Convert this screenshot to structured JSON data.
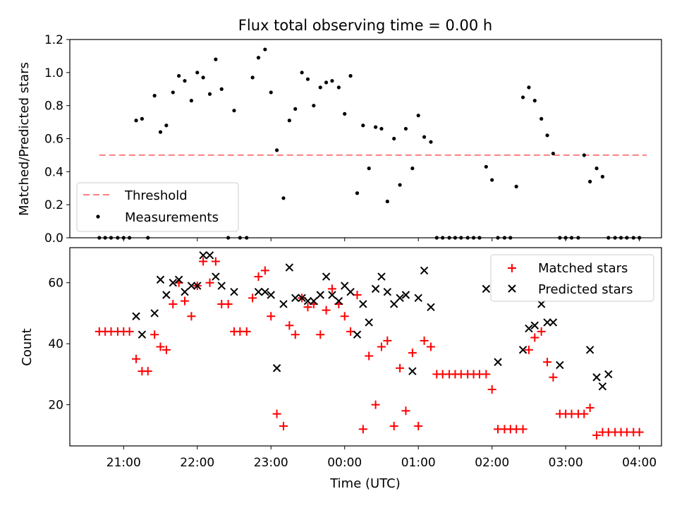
{
  "chart_data": [
    {
      "type": "scatter",
      "title": "Flux total observing time = 0.00 h",
      "xlabel": "",
      "ylabel": "Matched/Predicted stars",
      "ylim": [
        0,
        1.2
      ],
      "yticks": [
        "0.0",
        "0.2",
        "0.4",
        "0.6",
        "0.8",
        "1.0",
        "1.2"
      ],
      "xlim": [
        20.27,
        28.3
      ],
      "grid": false,
      "legend_position": "lower-left",
      "threshold": {
        "name": "Threshold",
        "value": 0.5,
        "x": [
          20.67,
          28.1
        ],
        "color": "#ff7f7f"
      },
      "series": [
        {
          "name": "Measurements",
          "color": "#000000",
          "x": [
            20.67,
            20.75,
            20.83,
            20.92,
            21.0,
            21.08,
            21.17,
            21.25,
            21.33,
            21.42,
            21.5,
            21.58,
            21.67,
            21.75,
            21.83,
            21.92,
            22.0,
            22.08,
            22.17,
            22.25,
            22.33,
            22.42,
            22.5,
            22.58,
            22.67,
            22.75,
            22.83,
            22.92,
            23.0,
            23.08,
            23.17,
            23.25,
            23.33,
            23.42,
            23.5,
            23.58,
            23.67,
            23.75,
            23.83,
            23.92,
            24.0,
            24.08,
            24.17,
            24.25,
            24.33,
            24.42,
            24.5,
            24.58,
            24.67,
            24.75,
            24.83,
            24.92,
            25.0,
            25.08,
            25.17,
            25.25,
            25.33,
            25.42,
            25.5,
            25.58,
            25.67,
            25.75,
            25.83,
            25.92,
            26.0,
            26.08,
            26.17,
            26.25,
            26.33,
            26.42,
            26.5,
            26.58,
            26.67,
            26.75,
            26.83,
            26.92,
            27.0,
            27.08,
            27.17,
            27.25,
            27.33,
            27.42,
            27.5,
            27.58,
            27.67,
            27.75,
            27.83,
            27.92,
            28.0
          ],
          "y": [
            0,
            0,
            0,
            0,
            0,
            0,
            0.71,
            0.72,
            0,
            0.86,
            0.64,
            0.68,
            0.88,
            0.98,
            0.95,
            0.83,
            1.0,
            0.97,
            0.87,
            1.08,
            0.9,
            0,
            0.77,
            0,
            0,
            0.97,
            1.09,
            1.14,
            0.88,
            0.53,
            0.24,
            0.71,
            0.78,
            1.0,
            0.96,
            0.8,
            0.91,
            0.94,
            0.95,
            0.91,
            0.75,
            0.98,
            0.27,
            0.68,
            0.42,
            0.67,
            0.66,
            0.22,
            0.6,
            0.32,
            0.66,
            0.42,
            0.74,
            0.61,
            0.58,
            0,
            0,
            0,
            0,
            0,
            0,
            0,
            0,
            0.43,
            0.35,
            0,
            0,
            0,
            0.31,
            0.85,
            0.91,
            0.83,
            0.72,
            0.62,
            0.51,
            0,
            0,
            0,
            0,
            0.5,
            0.34,
            0.42,
            0.37,
            0,
            0,
            0,
            0,
            0,
            0
          ]
        }
      ]
    },
    {
      "type": "scatter",
      "title": "",
      "xlabel": "Time (UTC)",
      "ylabel": "Count",
      "ylim": [
        6.5,
        71.5
      ],
      "yticks": [
        "20",
        "40",
        "60"
      ],
      "xlim": [
        20.27,
        28.3
      ],
      "xticks": [
        "21:00",
        "22:00",
        "23:00",
        "00:00",
        "01:00",
        "02:00",
        "03:00",
        "04:00"
      ],
      "grid": false,
      "legend_position": "upper-right",
      "series": [
        {
          "name": "Matched stars",
          "color": "#ff0000",
          "marker": "+",
          "x": [
            20.67,
            20.75,
            20.83,
            20.92,
            21.0,
            21.08,
            21.17,
            21.25,
            21.33,
            21.42,
            21.5,
            21.58,
            21.67,
            21.75,
            21.83,
            21.92,
            22.0,
            22.08,
            22.17,
            22.25,
            22.33,
            22.42,
            22.5,
            22.58,
            22.67,
            22.75,
            22.83,
            22.92,
            23.0,
            23.08,
            23.17,
            23.25,
            23.33,
            23.42,
            23.5,
            23.58,
            23.67,
            23.75,
            23.83,
            23.92,
            24.0,
            24.08,
            24.17,
            24.25,
            24.33,
            24.42,
            24.5,
            24.58,
            24.67,
            24.75,
            24.83,
            24.92,
            25.0,
            25.08,
            25.17,
            25.25,
            25.33,
            25.42,
            25.5,
            25.58,
            25.67,
            25.75,
            25.83,
            25.92,
            26.0,
            26.08,
            26.17,
            26.25,
            26.33,
            26.42,
            26.5,
            26.58,
            26.67,
            26.75,
            26.83,
            26.92,
            27.0,
            27.08,
            27.17,
            27.25,
            27.33,
            27.42,
            27.5,
            27.58,
            27.67,
            27.75,
            27.83,
            27.92,
            28.0
          ],
          "y": [
            44,
            44,
            44,
            44,
            44,
            44,
            35,
            31,
            31,
            43,
            39,
            38,
            53,
            60,
            54,
            49,
            59,
            67,
            60,
            67,
            53,
            53,
            44,
            44,
            44,
            55,
            62,
            64,
            49,
            17,
            13,
            46,
            43,
            55,
            52,
            53,
            43,
            51,
            58,
            53,
            49,
            44,
            56,
            12,
            36,
            20,
            39,
            41,
            13,
            32,
            18,
            37,
            13,
            41,
            39,
            30,
            30,
            30,
            30,
            30,
            30,
            30,
            30,
            30,
            25,
            12,
            12,
            12,
            12,
            12,
            38,
            42,
            44,
            34,
            29,
            17,
            17,
            17,
            17,
            17,
            19,
            10,
            11,
            11,
            11,
            11,
            11,
            11,
            11
          ]
        },
        {
          "name": "Predicted stars",
          "color": "#000000",
          "marker": "x",
          "x": [
            21.17,
            21.25,
            21.42,
            21.5,
            21.58,
            21.67,
            21.75,
            21.83,
            21.92,
            22.0,
            22.08,
            22.17,
            22.25,
            22.33,
            22.5,
            22.83,
            22.92,
            23.0,
            23.08,
            23.17,
            23.25,
            23.33,
            23.42,
            23.5,
            23.58,
            23.67,
            23.75,
            23.83,
            23.92,
            24.0,
            24.08,
            24.17,
            24.25,
            24.33,
            24.42,
            24.5,
            24.58,
            24.67,
            24.75,
            24.83,
            24.92,
            25.0,
            25.08,
            25.17,
            25.92,
            26.08,
            26.42,
            26.5,
            26.58,
            26.67,
            26.75,
            26.83,
            26.92,
            27.33,
            27.42,
            27.5,
            27.58
          ],
          "y": [
            49,
            43,
            50,
            61,
            56,
            60,
            61,
            57,
            59,
            59,
            69,
            69,
            62,
            59,
            57,
            57,
            57,
            56,
            32,
            53,
            65,
            55,
            55,
            54,
            54,
            56,
            62,
            56,
            54,
            59,
            57,
            43,
            53,
            47,
            58,
            62,
            57,
            53,
            55,
            56,
            31,
            55,
            64,
            52,
            58,
            34,
            38,
            45,
            46,
            53,
            47,
            47,
            33,
            38,
            29,
            26,
            30
          ]
        }
      ]
    }
  ]
}
